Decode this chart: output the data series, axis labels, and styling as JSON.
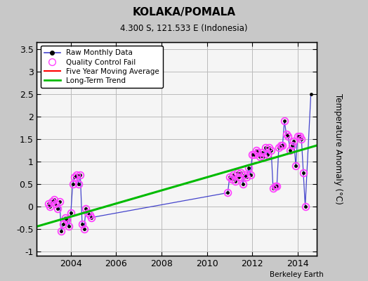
{
  "title": "KOLAKA/POMALA",
  "subtitle": "4.300 S, 121.533 E (Indonesia)",
  "ylabel": "Temperature Anomaly (°C)",
  "attribution": "Berkeley Earth",
  "xlim": [
    2002.5,
    2014.83
  ],
  "ylim": [
    -1.1,
    3.65
  ],
  "yticks": [
    -1,
    -0.5,
    0,
    0.5,
    1,
    1.5,
    2,
    2.5,
    3,
    3.5
  ],
  "xticks": [
    2004,
    2006,
    2008,
    2010,
    2012,
    2014
  ],
  "bg_color": "#c8c8c8",
  "plot_bg_color": "#f5f5f5",
  "raw_x": [
    2003.0,
    2003.083,
    2003.167,
    2003.25,
    2003.333,
    2003.417,
    2003.5,
    2003.583,
    2003.667,
    2003.75,
    2003.833,
    2003.917,
    2004.0,
    2004.083,
    2004.167,
    2004.25,
    2004.333,
    2004.417,
    2004.5,
    2004.583,
    2004.667,
    2004.75,
    2004.833,
    2004.917,
    2010.917,
    2011.0,
    2011.083,
    2011.167,
    2011.25,
    2011.333,
    2011.417,
    2011.5,
    2011.583,
    2011.667,
    2011.75,
    2011.833,
    2011.917,
    2012.0,
    2012.083,
    2012.167,
    2012.25,
    2012.333,
    2012.417,
    2012.5,
    2012.583,
    2012.667,
    2012.75,
    2012.833,
    2012.917,
    2013.0,
    2013.083,
    2013.167,
    2013.25,
    2013.333,
    2013.417,
    2013.5,
    2013.583,
    2013.667,
    2013.75,
    2013.833,
    2013.917,
    2014.0,
    2014.083,
    2014.167,
    2014.25,
    2014.333,
    2014.583
  ],
  "raw_y": [
    0.05,
    0.0,
    0.1,
    0.15,
    0.05,
    -0.05,
    0.1,
    -0.55,
    -0.4,
    -0.25,
    -0.3,
    -0.45,
    -0.15,
    0.5,
    0.65,
    0.7,
    0.5,
    0.7,
    -0.4,
    -0.5,
    -0.05,
    -0.15,
    -0.2,
    -0.25,
    0.3,
    0.65,
    0.6,
    0.7,
    0.55,
    0.75,
    0.65,
    0.75,
    0.5,
    0.7,
    0.65,
    0.85,
    0.7,
    1.15,
    1.15,
    1.25,
    1.2,
    1.1,
    1.2,
    1.1,
    1.3,
    1.15,
    1.3,
    1.25,
    0.4,
    0.45,
    0.45,
    1.3,
    1.35,
    1.35,
    1.9,
    1.6,
    1.55,
    1.25,
    1.35,
    1.45,
    0.9,
    1.55,
    1.55,
    1.5,
    0.75,
    0.0,
    2.5
  ],
  "qc_fail_x": [
    2003.0,
    2003.083,
    2003.167,
    2003.25,
    2003.333,
    2003.417,
    2003.5,
    2003.583,
    2003.667,
    2003.75,
    2003.833,
    2003.917,
    2004.0,
    2004.083,
    2004.167,
    2004.25,
    2004.333,
    2004.417,
    2004.5,
    2004.583,
    2004.667,
    2004.75,
    2004.833,
    2004.917,
    2010.917,
    2011.0,
    2011.083,
    2011.167,
    2011.25,
    2011.333,
    2011.417,
    2011.5,
    2011.583,
    2011.667,
    2011.75,
    2011.833,
    2011.917,
    2012.0,
    2012.083,
    2012.167,
    2012.25,
    2012.333,
    2012.417,
    2012.5,
    2012.583,
    2012.667,
    2012.75,
    2012.833,
    2012.917,
    2013.0,
    2013.083,
    2013.167,
    2013.25,
    2013.333,
    2013.417,
    2013.5,
    2013.583,
    2013.667,
    2013.75,
    2013.833,
    2013.917,
    2014.0,
    2014.083,
    2014.167,
    2014.25,
    2014.333
  ],
  "qc_fail_y": [
    0.05,
    0.0,
    0.1,
    0.15,
    0.05,
    -0.05,
    0.1,
    -0.55,
    -0.4,
    -0.25,
    -0.3,
    -0.45,
    -0.15,
    0.5,
    0.65,
    0.7,
    0.5,
    0.7,
    -0.4,
    -0.5,
    -0.05,
    -0.15,
    -0.2,
    -0.25,
    0.3,
    0.65,
    0.6,
    0.7,
    0.55,
    0.75,
    0.65,
    0.75,
    0.5,
    0.7,
    0.65,
    0.85,
    0.7,
    1.15,
    1.15,
    1.25,
    1.2,
    1.1,
    1.2,
    1.1,
    1.3,
    1.15,
    1.3,
    1.25,
    0.4,
    0.45,
    0.45,
    1.3,
    1.35,
    1.35,
    1.9,
    1.6,
    1.55,
    1.25,
    1.35,
    1.45,
    0.9,
    1.55,
    1.55,
    1.5,
    0.75,
    0.0
  ],
  "trend_x": [
    2002.5,
    2014.83
  ],
  "trend_y": [
    -0.45,
    1.35
  ],
  "lone_point_x": 2014.583,
  "lone_point_y": 2.5,
  "raw_line_color": "#4444cc",
  "raw_marker_color": "#000000",
  "qc_marker_color": "#ff44ff",
  "trend_color": "#00bb00",
  "grid_color": "#bbbbbb"
}
